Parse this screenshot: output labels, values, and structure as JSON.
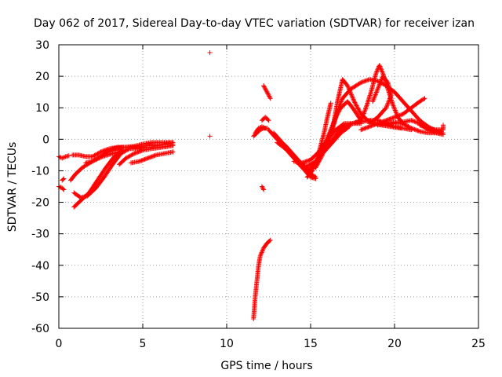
{
  "chart_data": {
    "type": "scatter",
    "title": "Day 062 of 2017, Sidereal Day-to-day VTEC variation (SDTVAR) for receiver izan",
    "xlabel": "GPS time / hours",
    "ylabel": "SDTVAR / TECUs",
    "xlim": [
      0,
      25
    ],
    "ylim": [
      -60,
      30
    ],
    "xticks": [
      "0",
      "5",
      "10",
      "15",
      "20",
      "25"
    ],
    "yticks": [
      "-60",
      "-50",
      "-40",
      "-30",
      "-20",
      "-10",
      "0",
      "10",
      "20",
      "30"
    ],
    "grid": true,
    "marker": "+",
    "color": "#ff0000",
    "series": [
      {
        "tracks": [
          [
            [
              0.0,
              -5.5
            ],
            [
              0.2,
              -6
            ],
            [
              0.4,
              -5.5
            ],
            [
              0.6,
              -5.2
            ]
          ],
          [
            [
              0.0,
              -15
            ],
            [
              0.2,
              -15.5
            ],
            [
              0.3,
              -16
            ]
          ],
          [
            [
              0.2,
              -13
            ],
            [
              0.3,
              -12.5
            ]
          ],
          [
            [
              0.7,
              -13
            ],
            [
              1.0,
              -11
            ],
            [
              1.4,
              -9
            ],
            [
              2.0,
              -7
            ],
            [
              2.6,
              -5
            ],
            [
              3.2,
              -3
            ],
            [
              3.8,
              -2.5
            ]
          ],
          [
            [
              0.8,
              -5
            ],
            [
              1.2,
              -5
            ],
            [
              1.6,
              -5.5
            ],
            [
              2.0,
              -5.5
            ],
            [
              2.5,
              -4
            ],
            [
              3.0,
              -3
            ],
            [
              3.5,
              -2.5
            ],
            [
              4.0,
              -2.5
            ],
            [
              4.5,
              -2.2
            ],
            [
              5.0,
              -1.5
            ],
            [
              5.5,
              -1
            ],
            [
              6.0,
              -1
            ],
            [
              6.5,
              -1
            ],
            [
              6.8,
              -1
            ]
          ],
          [
            [
              0.9,
              -17
            ],
            [
              1.3,
              -18.5
            ],
            [
              1.7,
              -18
            ],
            [
              2.2,
              -15.5
            ],
            [
              2.7,
              -12
            ],
            [
              3.2,
              -8
            ],
            [
              3.7,
              -4.5
            ],
            [
              4.2,
              -3
            ],
            [
              4.7,
              -3
            ],
            [
              5.2,
              -2.5
            ]
          ],
          [
            [
              0.9,
              -21.5
            ],
            [
              1.3,
              -19.5
            ],
            [
              1.8,
              -17
            ],
            [
              2.3,
              -13
            ],
            [
              2.8,
              -9
            ],
            [
              3.3,
              -5.5
            ],
            [
              3.8,
              -3.5
            ]
          ],
          [
            [
              1.6,
              -7.5
            ],
            [
              2.0,
              -7
            ],
            [
              2.6,
              -5.5
            ],
            [
              3.2,
              -4.5
            ],
            [
              3.6,
              -4
            ]
          ],
          [
            [
              2.8,
              -4
            ],
            [
              3.3,
              -3
            ],
            [
              4.0,
              -2.5
            ],
            [
              4.6,
              -2.5
            ],
            [
              5.2,
              -2
            ],
            [
              5.8,
              -2
            ],
            [
              6.4,
              -1.5
            ],
            [
              6.8,
              -1.5
            ]
          ],
          [
            [
              3.6,
              -8
            ],
            [
              4.0,
              -6
            ],
            [
              4.5,
              -4.5
            ],
            [
              5.0,
              -3.5
            ],
            [
              5.5,
              -3
            ],
            [
              6.2,
              -2.5
            ],
            [
              6.8,
              -2
            ]
          ],
          [
            [
              4.3,
              -7.5
            ],
            [
              4.8,
              -7
            ],
            [
              5.3,
              -6
            ],
            [
              5.8,
              -5
            ],
            [
              6.3,
              -4.5
            ],
            [
              6.8,
              -4
            ]
          ],
          [
            [
              9.0,
              27.5
            ]
          ],
          [
            [
              9.0,
              1
            ]
          ],
          [
            [
              11.6,
              -57
            ],
            [
              11.7,
              -50
            ],
            [
              11.8,
              -45
            ],
            [
              11.9,
              -40
            ],
            [
              12.0,
              -37
            ],
            [
              12.2,
              -34.5
            ],
            [
              12.4,
              -33
            ],
            [
              12.6,
              -32
            ]
          ],
          [
            [
              12.1,
              -15
            ],
            [
              12.2,
              -16
            ]
          ],
          [
            [
              11.6,
              1
            ],
            [
              11.8,
              2
            ],
            [
              12.0,
              3
            ],
            [
              12.2,
              3.5
            ],
            [
              12.4,
              3.5
            ]
          ],
          [
            [
              11.7,
              2
            ],
            [
              11.9,
              3.5
            ],
            [
              12.1,
              4
            ],
            [
              12.3,
              3.5
            ]
          ],
          [
            [
              12.1,
              6
            ],
            [
              12.3,
              7
            ],
            [
              12.5,
              6
            ]
          ],
          [
            [
              12.2,
              17
            ],
            [
              12.4,
              15
            ],
            [
              12.6,
              13
            ]
          ],
          [
            [
              12.5,
              3
            ],
            [
              13.0,
              0
            ],
            [
              13.5,
              -2
            ],
            [
              14.0,
              -5
            ],
            [
              14.5,
              -8
            ],
            [
              15.0,
              -11
            ],
            [
              15.3,
              -12
            ]
          ],
          [
            [
              12.8,
              2
            ],
            [
              13.3,
              -1
            ],
            [
              13.8,
              -4
            ],
            [
              14.3,
              -7
            ],
            [
              14.7,
              -9
            ],
            [
              15.1,
              -10
            ]
          ],
          [
            [
              13.0,
              -1
            ],
            [
              13.5,
              -3
            ],
            [
              14.0,
              -6
            ],
            [
              14.5,
              -9
            ],
            [
              15.0,
              -12
            ],
            [
              15.3,
              -12.5
            ]
          ],
          [
            [
              14.0,
              -7
            ],
            [
              14.5,
              -7.5
            ],
            [
              15.0,
              -6.5
            ],
            [
              15.5,
              -4
            ],
            [
              16.0,
              0
            ],
            [
              16.5,
              3
            ],
            [
              17.0,
              5
            ],
            [
              17.5,
              5
            ],
            [
              18.0,
              5
            ]
          ],
          [
            [
              14.3,
              -8
            ],
            [
              14.8,
              -8.5
            ],
            [
              15.3,
              -7
            ],
            [
              15.8,
              -4
            ],
            [
              16.3,
              -1
            ],
            [
              16.8,
              2
            ],
            [
              17.3,
              4
            ]
          ],
          [
            [
              14.8,
              -12
            ],
            [
              15.1,
              -10
            ],
            [
              15.4,
              -6
            ],
            [
              15.6,
              -2
            ],
            [
              15.8,
              2
            ],
            [
              16.0,
              7
            ],
            [
              16.2,
              11.5
            ]
          ],
          [
            [
              15.0,
              -9
            ],
            [
              15.3,
              -7.5
            ],
            [
              15.6,
              -5
            ],
            [
              15.9,
              -1
            ],
            [
              16.2,
              3
            ],
            [
              16.5,
              7
            ],
            [
              16.8,
              10
            ],
            [
              17.2,
              12
            ],
            [
              17.5,
              10
            ],
            [
              18.0,
              6
            ]
          ],
          [
            [
              15.3,
              -9
            ],
            [
              15.7,
              -5
            ],
            [
              16.1,
              1
            ],
            [
              16.4,
              5
            ],
            [
              16.6,
              9
            ],
            [
              16.9,
              13
            ],
            [
              17.4,
              16
            ],
            [
              18.0,
              18
            ],
            [
              18.5,
              19
            ],
            [
              19.0,
              18.5
            ],
            [
              19.5,
              17
            ],
            [
              20.0,
              15
            ],
            [
              20.5,
              12
            ],
            [
              21.0,
              9
            ],
            [
              21.5,
              6
            ],
            [
              22.0,
              4
            ],
            [
              22.5,
              2.5
            ],
            [
              22.8,
              2.5
            ]
          ],
          [
            [
              16.0,
              -2
            ],
            [
              16.3,
              3
            ],
            [
              16.6,
              12
            ],
            [
              16.9,
              19
            ],
            [
              17.2,
              17
            ],
            [
              17.6,
              12
            ],
            [
              18.0,
              8
            ],
            [
              18.4,
              6
            ],
            [
              18.8,
              5
            ],
            [
              19.2,
              4.5
            ],
            [
              19.8,
              4
            ],
            [
              20.4,
              3.5
            ]
          ],
          [
            [
              16.2,
              -1
            ],
            [
              16.6,
              2
            ],
            [
              17.0,
              4
            ],
            [
              17.5,
              5
            ],
            [
              18.0,
              5.5
            ],
            [
              18.5,
              6
            ],
            [
              19.0,
              6
            ],
            [
              19.5,
              5
            ],
            [
              20.0,
              4
            ],
            [
              20.5,
              3.5
            ],
            [
              21.0,
              3
            ]
          ],
          [
            [
              17.0,
              4
            ],
            [
              17.5,
              5
            ],
            [
              18.0,
              6
            ],
            [
              18.3,
              10
            ],
            [
              18.6,
              15
            ],
            [
              18.9,
              21
            ],
            [
              19.1,
              23.5
            ],
            [
              19.3,
              21
            ],
            [
              19.6,
              16
            ],
            [
              19.9,
              11
            ],
            [
              20.2,
              7
            ],
            [
              20.5,
              5
            ]
          ],
          [
            [
              18.0,
              3
            ],
            [
              18.5,
              4
            ],
            [
              19.0,
              5
            ],
            [
              19.5,
              6
            ],
            [
              20.0,
              7
            ],
            [
              20.5,
              8
            ],
            [
              21.0,
              10
            ],
            [
              21.5,
              12
            ],
            [
              21.8,
              13
            ]
          ],
          [
            [
              18.5,
              5
            ],
            [
              19.0,
              7
            ],
            [
              19.5,
              10
            ],
            [
              19.8,
              14
            ],
            [
              19.6,
              18
            ],
            [
              19.3,
              20
            ],
            [
              19.0,
              16
            ],
            [
              18.7,
              12
            ]
          ],
          [
            [
              19.0,
              4.5
            ],
            [
              19.5,
              5
            ],
            [
              20.0,
              5.5
            ],
            [
              20.5,
              5
            ],
            [
              21.0,
              3.5
            ],
            [
              21.5,
              2.5
            ],
            [
              22.0,
              2
            ],
            [
              22.5,
              2
            ],
            [
              22.9,
              2
            ]
          ],
          [
            [
              19.5,
              5
            ],
            [
              20.0,
              5
            ],
            [
              20.5,
              5.5
            ],
            [
              21.0,
              6
            ],
            [
              21.5,
              5
            ],
            [
              22.0,
              3
            ],
            [
              22.5,
              2
            ],
            [
              22.9,
              1.5
            ]
          ],
          [
            [
              21.5,
              4.5
            ],
            [
              22.0,
              3.5
            ],
            [
              22.5,
              3
            ],
            [
              22.9,
              3
            ],
            [
              22.9,
              4.5
            ]
          ]
        ]
      }
    ]
  }
}
